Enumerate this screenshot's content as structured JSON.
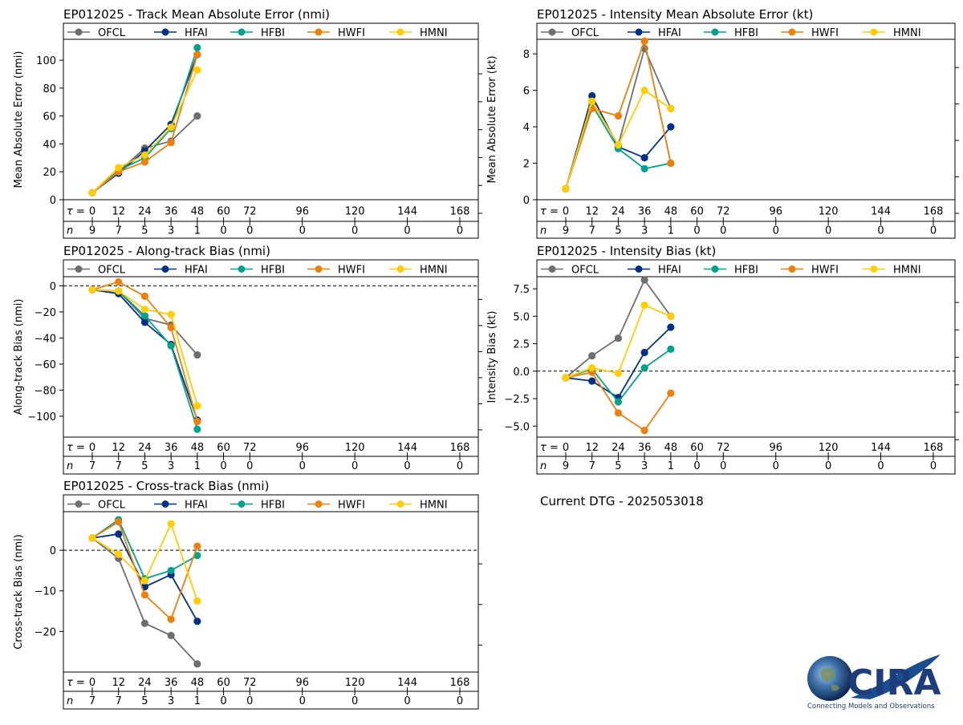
{
  "taus": [
    0,
    12,
    24,
    36,
    48,
    60,
    72,
    96,
    120,
    144,
    168
  ],
  "tau_label": "τ =",
  "n_label": "n",
  "legend": [
    "OFCL",
    "HFAI",
    "HFBI",
    "HWFI",
    "HMNI"
  ],
  "colors": {
    "OFCL": "#6e6e6e",
    "HFAI": "#003087",
    "HFBI": "#00a38c",
    "HWFI": "#ee7f08",
    "HMNI": "#ffcd00"
  },
  "dtg": "Current DTG - 2025053018",
  "logo": {
    "text": "CIRA",
    "tagline": "Connecting Models and Observations"
  },
  "chart_data": [
    {
      "id": "track",
      "type": "line",
      "title": "EP012025 - Track Mean Absolute Error (nmi)",
      "ylabel": "Mean Absolute Error (nmi)",
      "ylim": [
        0,
        115
      ],
      "yticks": [
        0,
        20,
        40,
        60,
        80,
        100
      ],
      "zero_line": false,
      "n": [
        9,
        7,
        5,
        3,
        1,
        0,
        0,
        0,
        0,
        0,
        0
      ],
      "series": [
        {
          "name": "OFCL",
          "x": [
            0,
            12,
            24,
            36,
            48
          ],
          "values": [
            5,
            20,
            37,
            42,
            60
          ]
        },
        {
          "name": "HFAI",
          "x": [
            0,
            12,
            24,
            36,
            48
          ],
          "values": [
            5,
            19,
            35,
            54,
            104
          ]
        },
        {
          "name": "HFBI",
          "x": [
            0,
            12,
            24,
            36,
            48
          ],
          "values": [
            5,
            21,
            30,
            51,
            109
          ]
        },
        {
          "name": "HWFI",
          "x": [
            0,
            12,
            24,
            36,
            48
          ],
          "values": [
            5,
            20,
            27,
            41,
            104
          ]
        },
        {
          "name": "HMNI",
          "x": [
            0,
            12,
            24,
            36,
            48
          ],
          "values": [
            5,
            23,
            32,
            52,
            93
          ]
        }
      ]
    },
    {
      "id": "intensity",
      "type": "line",
      "title": "EP012025 - Intensity Mean Absolute Error (kt)",
      "ylabel": "Mean Absolute Error (kt)",
      "ylim": [
        0,
        8.8
      ],
      "yticks": [
        0,
        2,
        4,
        6,
        8
      ],
      "zero_line": false,
      "n": [
        9,
        7,
        5,
        3,
        1,
        0,
        0,
        0,
        0,
        0,
        0
      ],
      "series": [
        {
          "name": "OFCL",
          "x": [
            0,
            12,
            24,
            36,
            48
          ],
          "values": [
            0.6,
            5.4,
            3.0,
            8.3,
            5.0
          ]
        },
        {
          "name": "HFAI",
          "x": [
            0,
            12,
            24,
            36,
            48
          ],
          "values": [
            0.6,
            5.7,
            2.9,
            2.3,
            4.0
          ]
        },
        {
          "name": "HFBI",
          "x": [
            0,
            12,
            24,
            36,
            48
          ],
          "values": [
            0.6,
            5.2,
            2.8,
            1.7,
            2.0
          ]
        },
        {
          "name": "HWFI",
          "x": [
            0,
            12,
            24,
            36,
            48
          ],
          "values": [
            0.6,
            5.0,
            4.6,
            8.7,
            2.0
          ]
        },
        {
          "name": "HMNI",
          "x": [
            0,
            12,
            24,
            36,
            48
          ],
          "values": [
            0.6,
            5.4,
            3.0,
            6.0,
            5.0
          ]
        }
      ]
    },
    {
      "id": "along",
      "type": "line",
      "title": "EP012025 - Along-track Bias (nmi)",
      "ylabel": "Along-track Bias (nmi)",
      "ylim": [
        -116,
        7
      ],
      "yticks": [
        0,
        -20,
        -40,
        -60,
        -80,
        -100
      ],
      "zero_line": true,
      "n": [
        7,
        7,
        5,
        3,
        1,
        0,
        0,
        0,
        0,
        0,
        0
      ],
      "series": [
        {
          "name": "OFCL",
          "x": [
            0,
            12,
            24,
            36,
            48
          ],
          "values": [
            -3,
            -4,
            -25,
            -30,
            -53
          ]
        },
        {
          "name": "HFAI",
          "x": [
            0,
            12,
            24,
            36,
            48
          ],
          "values": [
            -3,
            -6,
            -28,
            -45,
            -103
          ]
        },
        {
          "name": "HFBI",
          "x": [
            0,
            12,
            24,
            36,
            48
          ],
          "values": [
            -3,
            -4,
            -23,
            -46,
            -110
          ]
        },
        {
          "name": "HWFI",
          "x": [
            0,
            12,
            24,
            36,
            48
          ],
          "values": [
            -3,
            3,
            -8,
            -32,
            -104
          ]
        },
        {
          "name": "HMNI",
          "x": [
            0,
            12,
            24,
            36,
            48
          ],
          "values": [
            -3,
            -4,
            -18,
            -22,
            -92
          ]
        }
      ]
    },
    {
      "id": "ibias",
      "type": "line",
      "title": "EP012025 - Intensity Bias (kt)",
      "ylabel": "Intensity Bias (kt)",
      "ylim": [
        -6.0,
        8.6
      ],
      "yticks": [
        7.5,
        5.0,
        2.5,
        0.0,
        -2.5,
        -5.0
      ],
      "tick_format": "fixed1",
      "zero_line": true,
      "n": [
        9,
        7,
        5,
        3,
        1,
        0,
        0,
        0,
        0,
        0,
        0
      ],
      "series": [
        {
          "name": "OFCL",
          "x": [
            0,
            12,
            24,
            36,
            48
          ],
          "values": [
            -0.6,
            1.4,
            3.0,
            8.3,
            5.0
          ]
        },
        {
          "name": "HFAI",
          "x": [
            0,
            12,
            24,
            36,
            48
          ],
          "values": [
            -0.6,
            -0.9,
            -2.4,
            1.7,
            4.0
          ]
        },
        {
          "name": "HFBI",
          "x": [
            0,
            12,
            24,
            36,
            48
          ],
          "values": [
            -0.6,
            0.2,
            -2.8,
            0.3,
            2.0
          ]
        },
        {
          "name": "HWFI",
          "x": [
            0,
            12,
            24,
            36,
            48
          ],
          "values": [
            -0.6,
            -0.1,
            -3.8,
            -5.4,
            -2.0
          ]
        },
        {
          "name": "HMNI",
          "x": [
            0,
            12,
            24,
            36,
            48
          ],
          "values": [
            -0.6,
            0.3,
            -0.2,
            6.0,
            5.0
          ]
        }
      ]
    },
    {
      "id": "cross",
      "type": "line",
      "title": "EP012025 - Cross-track Bias (nmi)",
      "ylabel": "Cross-track Bias (nmi)",
      "ylim": [
        -30,
        9.5
      ],
      "yticks": [
        0,
        -10,
        -20
      ],
      "zero_line": true,
      "n": [
        7,
        7,
        5,
        3,
        1,
        0,
        0,
        0,
        0,
        0,
        0
      ],
      "series": [
        {
          "name": "OFCL",
          "x": [
            0,
            12,
            24,
            36,
            48
          ],
          "values": [
            3,
            -2,
            -18,
            -21,
            -28
          ]
        },
        {
          "name": "HFAI",
          "x": [
            0,
            12,
            24,
            36,
            48
          ],
          "values": [
            3,
            4,
            -9,
            -6,
            -17.5
          ]
        },
        {
          "name": "HFBI",
          "x": [
            0,
            12,
            24,
            36,
            48
          ],
          "values": [
            3,
            7.5,
            -7,
            -5,
            -1.3
          ]
        },
        {
          "name": "HWFI",
          "x": [
            0,
            12,
            24,
            36,
            48
          ],
          "values": [
            3,
            7,
            -11,
            -17,
            1
          ]
        },
        {
          "name": "HMNI",
          "x": [
            0,
            12,
            24,
            36,
            48
          ],
          "values": [
            3,
            -1,
            -7.5,
            6.5,
            -12.5
          ]
        }
      ]
    }
  ]
}
